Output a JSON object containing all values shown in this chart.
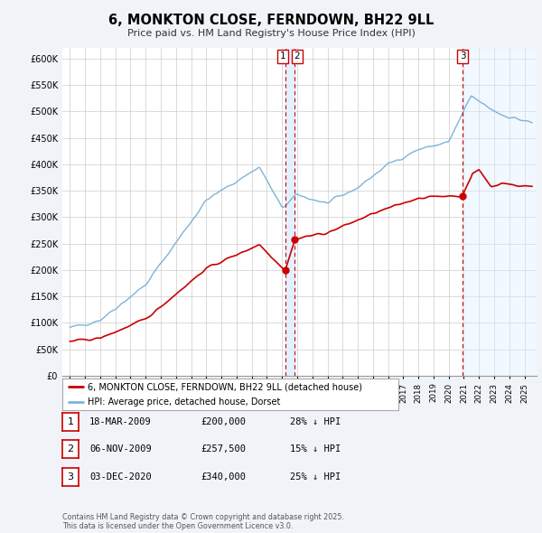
{
  "title": "6, MONKTON CLOSE, FERNDOWN, BH22 9LL",
  "subtitle": "Price paid vs. HM Land Registry's House Price Index (HPI)",
  "ylim": [
    0,
    620000
  ],
  "yticks": [
    0,
    50000,
    100000,
    150000,
    200000,
    250000,
    300000,
    350000,
    400000,
    450000,
    500000,
    550000,
    600000
  ],
  "ytick_labels": [
    "£0",
    "£50K",
    "£100K",
    "£150K",
    "£200K",
    "£250K",
    "£300K",
    "£350K",
    "£400K",
    "£450K",
    "£500K",
    "£550K",
    "£600K"
  ],
  "hpi_color": "#7cb4d8",
  "sale_color": "#cc0000",
  "bg_color": "#f0f4f8",
  "plot_bg": "#ffffff",
  "sale_points": [
    {
      "date_num": 2009.21,
      "price": 200000,
      "label": "1"
    },
    {
      "date_num": 2009.85,
      "price": 257500,
      "label": "2"
    },
    {
      "date_num": 2020.92,
      "price": 340000,
      "label": "3"
    }
  ],
  "vline_color": "#cc0000",
  "shade_color": "#ddeeff",
  "legend_labels": [
    "6, MONKTON CLOSE, FERNDOWN, BH22 9LL (detached house)",
    "HPI: Average price, detached house, Dorset"
  ],
  "table_data": [
    {
      "num": "1",
      "date": "18-MAR-2009",
      "price": "£200,000",
      "hpi": "28% ↓ HPI"
    },
    {
      "num": "2",
      "date": "06-NOV-2009",
      "price": "£257,500",
      "hpi": "15% ↓ HPI"
    },
    {
      "num": "3",
      "date": "03-DEC-2020",
      "price": "£340,000",
      "hpi": "25% ↓ HPI"
    }
  ],
  "footnote": "Contains HM Land Registry data © Crown copyright and database right 2025.\nThis data is licensed under the Open Government Licence v3.0."
}
